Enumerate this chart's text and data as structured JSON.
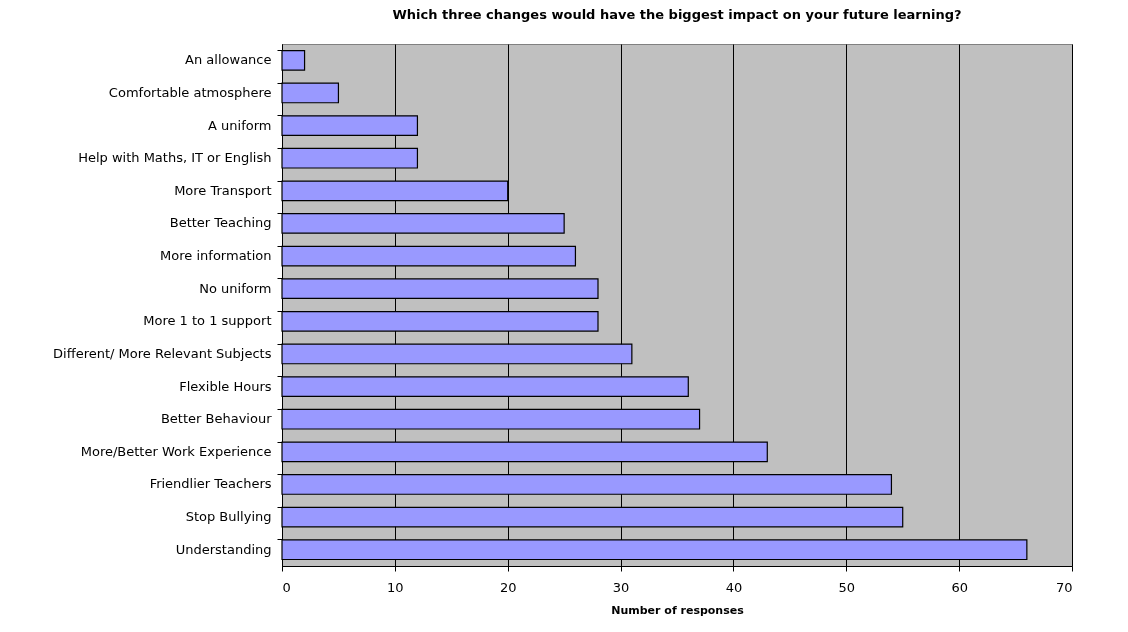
{
  "chart_data": {
    "type": "bar",
    "orientation": "horizontal",
    "title": "Which three changes would have the biggest impact on your future learning?",
    "xlabel": "Number of responses",
    "categories": [
      "An allowance",
      "Comfortable atmosphere",
      "A uniform",
      "Help with Maths, IT or English",
      "More Transport",
      "Better Teaching",
      "More information",
      "No uniform",
      "More 1 to 1 support",
      "Different/ More Relevant Subjects",
      "Flexible  Hours",
      "Better Behaviour",
      "More/Better Work Experience",
      "Friendlier Teachers",
      "Stop Bullying",
      "Understanding"
    ],
    "values": [
      2,
      5,
      12,
      12,
      20,
      25,
      26,
      28,
      28,
      31,
      36,
      37,
      43,
      54,
      55,
      66
    ],
    "color": "#9999ff",
    "xlim": [
      0,
      70
    ],
    "xticks": [
      0,
      10,
      20,
      30,
      40,
      50,
      60,
      70
    ],
    "grid": "x"
  }
}
